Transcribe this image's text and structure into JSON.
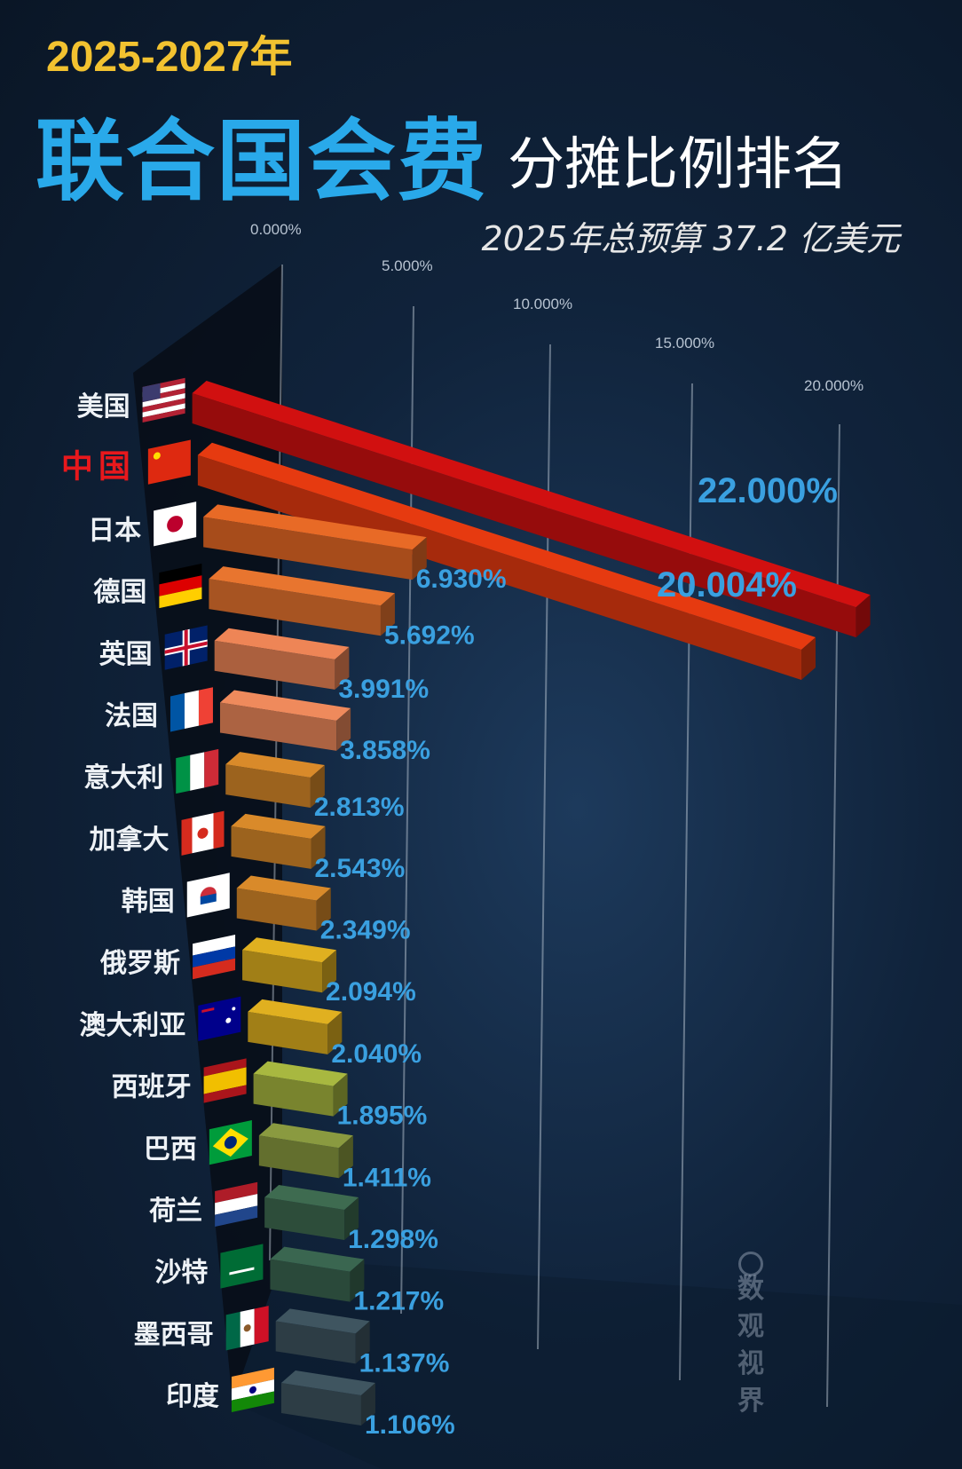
{
  "header": {
    "years": "2025-2027年",
    "title_main": "联合国会费",
    "title_sub": "分摊比例排名",
    "budget": "2025年总预算 37.2 亿美元"
  },
  "watermark": "数观视界",
  "colors": {
    "background": "#10233b",
    "title_blue": "#29a9ea",
    "year_gold": "#f2c230",
    "value_label": "#3aa0e0",
    "highlight_country": "#e8181c"
  },
  "chart_data": {
    "type": "bar",
    "orientation": "horizontal",
    "style": "3d-perspective",
    "tick_labels": [
      "0.000%",
      "5.000%",
      "10.000%",
      "15.000%",
      "20.000%"
    ],
    "xlim": [
      0,
      20
    ],
    "grid": true,
    "categories": [
      "美国",
      "中国",
      "日本",
      "德国",
      "英国",
      "法国",
      "意大利",
      "加拿大",
      "韩国",
      "俄罗斯",
      "澳大利亚",
      "西班牙",
      "巴西",
      "荷兰",
      "沙特",
      "墨西哥",
      "印度"
    ],
    "values": [
      22.0,
      20.004,
      6.93,
      5.692,
      3.991,
      3.858,
      2.813,
      2.543,
      2.349,
      2.094,
      2.04,
      1.895,
      1.411,
      1.298,
      1.217,
      1.137,
      1.106
    ],
    "value_labels": [
      "22.000%",
      "20.004%",
      "6.930%",
      "5.692%",
      "3.991%",
      "3.858%",
      "2.813%",
      "2.543%",
      "2.349%",
      "2.094%",
      "2.040%",
      "1.895%",
      "1.411%",
      "1.298%",
      "1.217%",
      "1.137%",
      "1.106%"
    ],
    "highlight": "中国",
    "flags": [
      "us-flag-icon",
      "cn-flag-icon",
      "jp-flag-icon",
      "de-flag-icon",
      "gb-flag-icon",
      "fr-flag-icon",
      "it-flag-icon",
      "ca-flag-icon",
      "kr-flag-icon",
      "ru-flag-icon",
      "au-flag-icon",
      "es-flag-icon",
      "br-flag-icon",
      "nl-flag-icon",
      "sa-flag-icon",
      "mx-flag-icon",
      "in-flag-icon"
    ],
    "bar_colors": [
      "#d11010",
      "#e63a10",
      "#e86a26",
      "#e8752f",
      "#ee8556",
      "#ef8a5c",
      "#d98a2a",
      "#d98a2a",
      "#d98a2a",
      "#e0b020",
      "#e0b020",
      "#a8b840",
      "#8a9a40",
      "#3e6b50",
      "#3a6650",
      "#3f5560",
      "#3f5560"
    ]
  }
}
